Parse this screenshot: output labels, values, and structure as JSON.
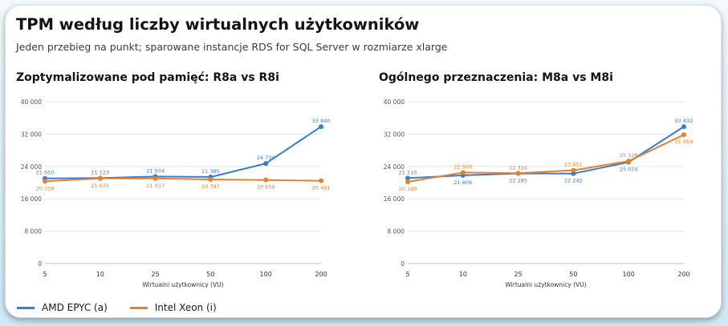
{
  "header": {
    "title": "TPM według liczby wirtualnych użytkowników",
    "subtitle": "Jeden przebieg na punkt; sparowane instancje RDS for SQL Server w rozmiarze xlarge"
  },
  "colors": {
    "amd": "#3a7bd5",
    "intel": "#e8802a",
    "grid": "#e6e6e6",
    "axis": "#bdbdbd"
  },
  "legend": [
    {
      "label": "AMD EPYC (a)",
      "color": "#3a7bd5"
    },
    {
      "label": "Intel Xeon (i)",
      "color": "#e8802a"
    }
  ],
  "chart_data": [
    {
      "type": "line",
      "title": "Zoptymalizowane pod pamięć: R8a vs R8i",
      "xlabel": "Wirtualni użytkownicy (VU)",
      "ylabel": "",
      "categories": [
        "5",
        "10",
        "25",
        "50",
        "100",
        "200"
      ],
      "ylim": [
        0,
        40000
      ],
      "yticks": [
        "0",
        "8 000",
        "16 000",
        "24 000",
        "32 000",
        "40 000"
      ],
      "grid": true,
      "series": [
        {
          "name": "AMD EPYC (a)",
          "color": "#3a7bd5",
          "values": [
            21050,
            21123,
            21504,
            21385,
            24734,
            33840
          ],
          "labels": [
            "21 050",
            "21 123",
            "21 504",
            "21 385",
            "24 734",
            "33 840"
          ]
        },
        {
          "name": "Intel Xeon (i)",
          "color": "#e8802a",
          "values": [
            20339,
            21035,
            21037,
            20797,
            20659,
            20461
          ],
          "labels": [
            "20 339",
            "21 035",
            "21 037",
            "20 797",
            "20 659",
            "20 461"
          ]
        }
      ]
    },
    {
      "type": "line",
      "title": "Ogólnego przeznaczenia: M8a vs M8i",
      "xlabel": "Wirtualni użytkownicy (VU)",
      "ylabel": "",
      "categories": [
        "5",
        "10",
        "25",
        "50",
        "100",
        "200"
      ],
      "ylim": [
        0,
        40000
      ],
      "yticks": [
        "0",
        "8 000",
        "16 000",
        "24 000",
        "32 000",
        "40 000"
      ],
      "grid": true,
      "series": [
        {
          "name": "AMD EPYC (a)",
          "color": "#3a7bd5",
          "values": [
            21110,
            21806,
            22285,
            22242,
            25074,
            33832
          ],
          "labels": [
            "21 110",
            "21 806",
            "22 285",
            "22 242",
            "25 074",
            "33 832"
          ]
        },
        {
          "name": "Intel Xeon (i)",
          "color": "#e8802a",
          "values": [
            20190,
            22500,
            22324,
            23051,
            25328,
            31850
          ],
          "labels": [
            "20 190",
            "22 500",
            "22 324",
            "23 051",
            "25 328",
            "31 850"
          ]
        }
      ]
    }
  ]
}
